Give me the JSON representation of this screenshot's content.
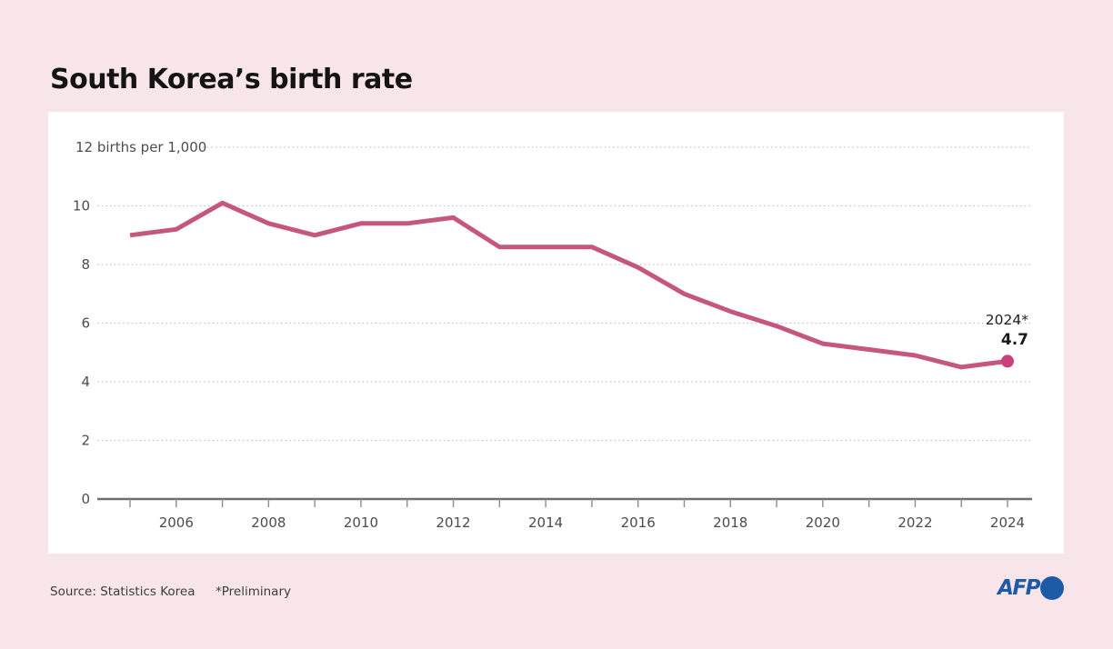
{
  "title": "South Korea’s birth rate",
  "chart_data": {
    "type": "line",
    "title": "South Korea’s birth rate",
    "unit_label": "12 births per 1,000",
    "x": [
      2005,
      2006,
      2007,
      2008,
      2009,
      2010,
      2011,
      2012,
      2013,
      2014,
      2015,
      2016,
      2017,
      2018,
      2019,
      2020,
      2021,
      2022,
      2023,
      2024
    ],
    "values": [
      9.0,
      9.2,
      10.1,
      9.4,
      9.0,
      9.4,
      9.4,
      9.6,
      8.6,
      8.6,
      8.6,
      7.9,
      7.0,
      6.4,
      5.9,
      5.3,
      5.1,
      4.9,
      4.5,
      4.7
    ],
    "ylim": [
      0,
      12
    ],
    "yticks": [
      0,
      2,
      4,
      6,
      8,
      10
    ],
    "ytick_top": 12,
    "xtick_labels": [
      2006,
      2008,
      2010,
      2012,
      2014,
      2016,
      2018,
      2020,
      2022,
      2024
    ],
    "grid": "dotted-horizontal",
    "legend": "none",
    "annotation": {
      "year_label": "2024*",
      "value_label": "4.7"
    },
    "colors": {
      "line": "#c5577f",
      "marker": "#c8417a"
    }
  },
  "footer": {
    "source": "Source: Statistics Korea",
    "preliminary": "*Preliminary",
    "logo": "AFP"
  },
  "colors": {
    "background": "#f8e5e9",
    "panel": "#ffffff",
    "accent": "#c5577f",
    "afp_blue": "#1d5ba9"
  }
}
